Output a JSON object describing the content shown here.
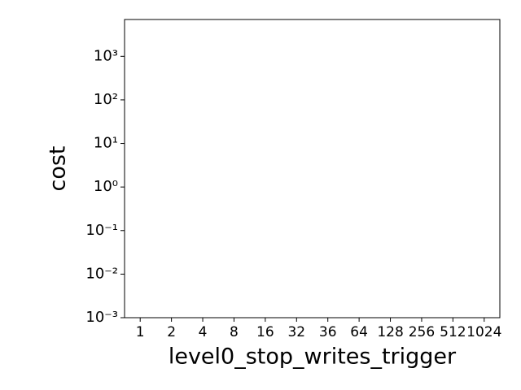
{
  "chart_data": {
    "type": "bar",
    "xlabel": "level0_stop_writes_trigger",
    "ylabel": "cost",
    "categories": [
      "1",
      "2",
      "4",
      "8",
      "16",
      "32",
      "36",
      "64",
      "128",
      "256",
      "512",
      "1024"
    ],
    "values": [
      null,
      null,
      null,
      null,
      null,
      null,
      null,
      null,
      null,
      null,
      null,
      null
    ],
    "category_label_colors": [
      "#000000",
      "#000000",
      "#000000",
      "#000000",
      "#000000",
      "#000000",
      "#000000",
      "#000000",
      "#000000",
      "#000000",
      "#ff0000",
      "#000000"
    ],
    "color": "#1f77b4",
    "yscale": "log",
    "ylim": [
      0.001,
      7000
    ],
    "yticks": [
      {
        "value": 0.001,
        "label": "10⁻³"
      },
      {
        "value": 0.01,
        "label": "10⁻²"
      },
      {
        "value": 0.1,
        "label": "10⁻¹"
      },
      {
        "value": 1,
        "label": "10⁰"
      },
      {
        "value": 10,
        "label": "10¹"
      },
      {
        "value": 100,
        "label": "10²"
      },
      {
        "value": 1000,
        "label": "10³"
      }
    ],
    "grid": false
  }
}
